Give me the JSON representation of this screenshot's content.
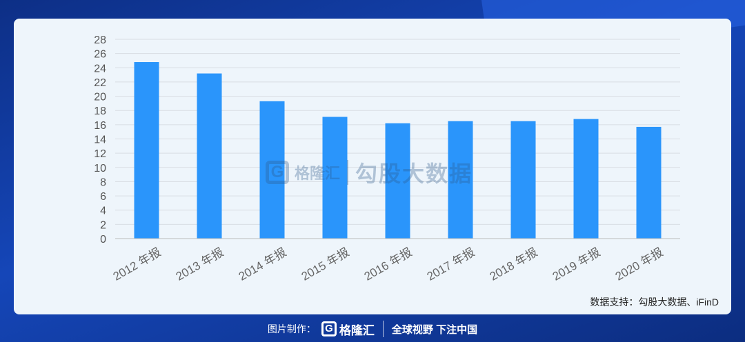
{
  "chart_data": {
    "type": "bar",
    "categories": [
      "2012 年报",
      "2013 年报",
      "2014 年报",
      "2015 年报",
      "2016 年报",
      "2017 年报",
      "2018 年报",
      "2019 年报",
      "2020 年报"
    ],
    "values": [
      24.8,
      23.2,
      19.3,
      17.1,
      16.2,
      16.5,
      16.5,
      16.8,
      15.7
    ],
    "ylim": [
      0,
      28
    ],
    "yticks": [
      0,
      2,
      4,
      6,
      8,
      10,
      12,
      14,
      16,
      18,
      20,
      22,
      24,
      26,
      28
    ],
    "grid": true,
    "bar_color": "#2a95fb",
    "title": "",
    "xlabel": "",
    "ylabel": ""
  },
  "watermark": {
    "logo_letter": "G",
    "brand": "格隆汇",
    "name": "勾股大数据"
  },
  "source": "数据支持：勾股大数据、iFinD",
  "footer": {
    "label": "图片制作：",
    "logo_letter": "G",
    "brand": "格隆汇",
    "slogan": "全球视野 下注中国"
  },
  "colors": {
    "background": "#1546b8",
    "panel": "#eef5fb",
    "bar": "#2a95fb"
  }
}
